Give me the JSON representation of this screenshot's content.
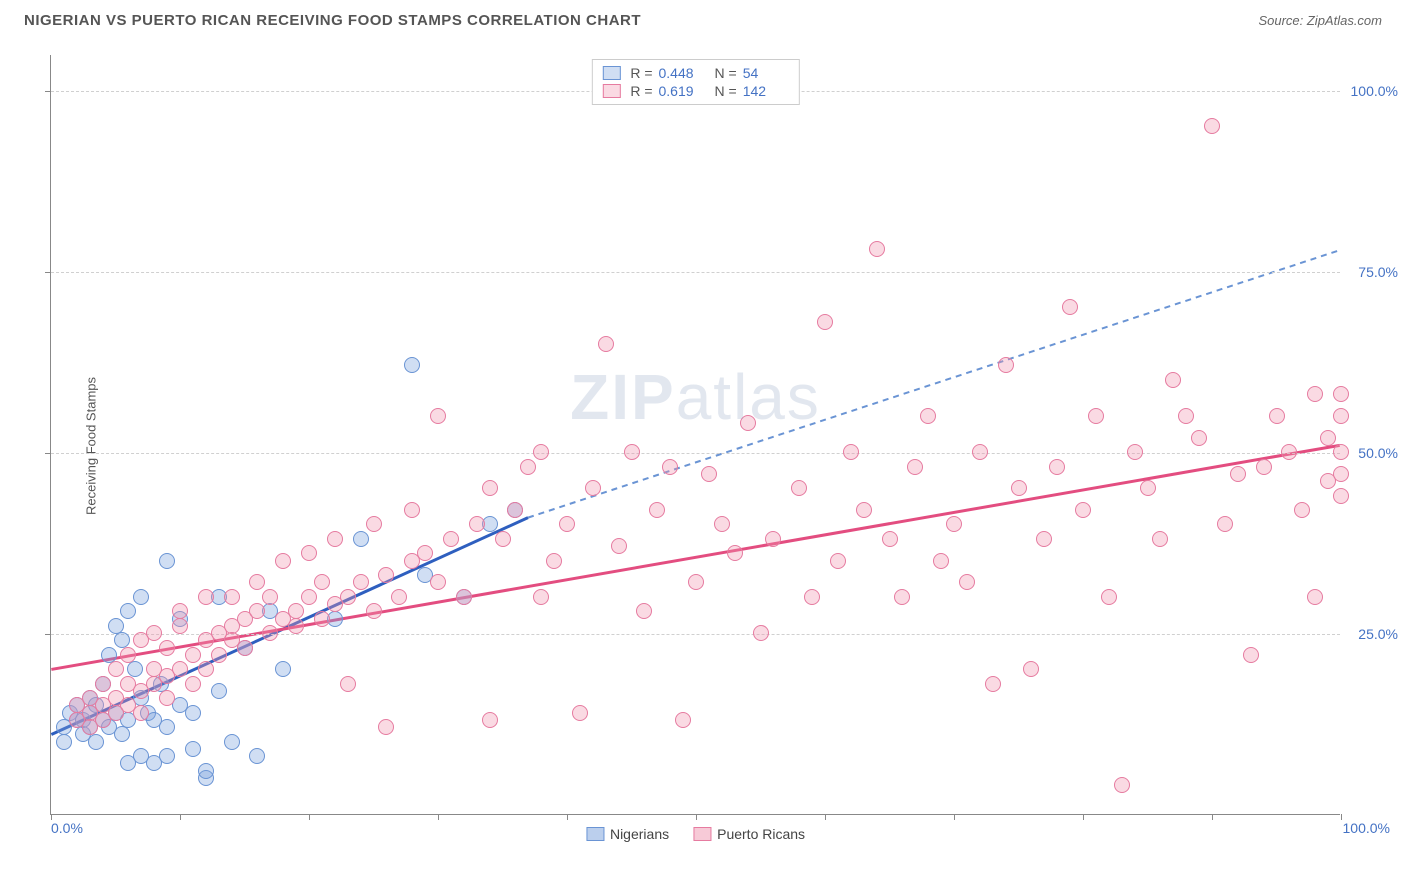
{
  "header": {
    "title": "NIGERIAN VS PUERTO RICAN RECEIVING FOOD STAMPS CORRELATION CHART",
    "source_prefix": "Source: ",
    "source": "ZipAtlas.com"
  },
  "watermark": {
    "part1": "ZIP",
    "part2": "atlas"
  },
  "chart": {
    "type": "scatter",
    "ylabel": "Receiving Food Stamps",
    "xlim": [
      0,
      100
    ],
    "ylim": [
      0,
      105
    ],
    "ytick_labels": [
      "25.0%",
      "50.0%",
      "75.0%",
      "100.0%"
    ],
    "ytick_values": [
      25,
      50,
      75,
      100
    ],
    "xtick_labels_visible": {
      "left": "0.0%",
      "right": "100.0%"
    },
    "xtick_positions": [
      0,
      10,
      20,
      30,
      40,
      50,
      60,
      70,
      80,
      90,
      100
    ],
    "grid_color": "#d0d0d0",
    "axis_color": "#888888",
    "background_color": "#ffffff",
    "point_radius": 8,
    "point_border_width": 1.5,
    "series": [
      {
        "name": "Nigerians",
        "fill": "rgba(120,160,220,0.35)",
        "stroke": "#6a94d4",
        "trend_color": "#2e5fbf",
        "trend_dash_color": "#6a94d4",
        "trend_width": 3,
        "R": "0.448",
        "N": "54",
        "trend_solid": {
          "x1": 0,
          "y1": 11,
          "x2": 37,
          "y2": 41
        },
        "trend_dashed": {
          "x1": 37,
          "y1": 41,
          "x2": 100,
          "y2": 78
        },
        "points": [
          [
            1,
            12
          ],
          [
            1.5,
            14
          ],
          [
            1,
            10
          ],
          [
            2,
            13
          ],
          [
            2,
            15
          ],
          [
            2.5,
            11
          ],
          [
            2.5,
            13
          ],
          [
            3,
            12
          ],
          [
            3,
            14
          ],
          [
            3,
            16
          ],
          [
            3.5,
            10
          ],
          [
            3.5,
            15
          ],
          [
            4,
            13
          ],
          [
            4,
            18
          ],
          [
            4.5,
            12
          ],
          [
            4.5,
            22
          ],
          [
            5,
            14
          ],
          [
            5,
            26
          ],
          [
            5.5,
            11
          ],
          [
            5.5,
            24
          ],
          [
            6,
            13
          ],
          [
            6,
            28
          ],
          [
            6,
            7
          ],
          [
            6.5,
            20
          ],
          [
            7,
            8
          ],
          [
            7,
            16
          ],
          [
            7,
            30
          ],
          [
            7.5,
            14
          ],
          [
            8,
            7
          ],
          [
            8,
            13
          ],
          [
            8.5,
            18
          ],
          [
            9,
            12
          ],
          [
            9,
            8
          ],
          [
            9,
            35
          ],
          [
            10,
            15
          ],
          [
            10,
            27
          ],
          [
            11,
            9
          ],
          [
            11,
            14
          ],
          [
            12,
            5
          ],
          [
            12,
            6
          ],
          [
            13,
            17
          ],
          [
            13,
            30
          ],
          [
            14,
            10
          ],
          [
            15,
            23
          ],
          [
            16,
            8
          ],
          [
            17,
            28
          ],
          [
            18,
            20
          ],
          [
            22,
            27
          ],
          [
            24,
            38
          ],
          [
            28,
            62
          ],
          [
            29,
            33
          ],
          [
            32,
            30
          ],
          [
            34,
            40
          ],
          [
            36,
            42
          ]
        ]
      },
      {
        "name": "Puerto Ricans",
        "fill": "rgba(240,150,175,0.35)",
        "stroke": "#e67ba0",
        "trend_color": "#e34d80",
        "trend_width": 3,
        "R": "0.619",
        "N": "142",
        "trend_solid": {
          "x1": 0,
          "y1": 20,
          "x2": 100,
          "y2": 51
        },
        "points": [
          [
            2,
            13
          ],
          [
            2,
            15
          ],
          [
            3,
            14
          ],
          [
            3,
            16
          ],
          [
            3,
            12
          ],
          [
            4,
            15
          ],
          [
            4,
            18
          ],
          [
            4,
            13
          ],
          [
            5,
            14
          ],
          [
            5,
            20
          ],
          [
            5,
            16
          ],
          [
            6,
            15
          ],
          [
            6,
            22
          ],
          [
            6,
            18
          ],
          [
            7,
            17
          ],
          [
            7,
            24
          ],
          [
            7,
            14
          ],
          [
            8,
            18
          ],
          [
            8,
            20
          ],
          [
            8,
            25
          ],
          [
            9,
            19
          ],
          [
            9,
            23
          ],
          [
            9,
            16
          ],
          [
            10,
            20
          ],
          [
            10,
            26
          ],
          [
            10,
            28
          ],
          [
            11,
            22
          ],
          [
            11,
            18
          ],
          [
            12,
            24
          ],
          [
            12,
            30
          ],
          [
            12,
            20
          ],
          [
            13,
            25
          ],
          [
            13,
            22
          ],
          [
            14,
            26
          ],
          [
            14,
            30
          ],
          [
            14,
            24
          ],
          [
            15,
            27
          ],
          [
            15,
            23
          ],
          [
            16,
            28
          ],
          [
            16,
            32
          ],
          [
            17,
            25
          ],
          [
            17,
            30
          ],
          [
            18,
            27
          ],
          [
            18,
            35
          ],
          [
            19,
            28
          ],
          [
            19,
            26
          ],
          [
            20,
            30
          ],
          [
            20,
            36
          ],
          [
            21,
            27
          ],
          [
            21,
            32
          ],
          [
            22,
            29
          ],
          [
            22,
            38
          ],
          [
            23,
            30
          ],
          [
            23,
            18
          ],
          [
            24,
            32
          ],
          [
            25,
            28
          ],
          [
            25,
            40
          ],
          [
            26,
            33
          ],
          [
            26,
            12
          ],
          [
            27,
            30
          ],
          [
            28,
            35
          ],
          [
            28,
            42
          ],
          [
            29,
            36
          ],
          [
            30,
            32
          ],
          [
            30,
            55
          ],
          [
            31,
            38
          ],
          [
            32,
            30
          ],
          [
            33,
            40
          ],
          [
            34,
            45
          ],
          [
            34,
            13
          ],
          [
            35,
            38
          ],
          [
            36,
            42
          ],
          [
            37,
            48
          ],
          [
            38,
            30
          ],
          [
            38,
            50
          ],
          [
            39,
            35
          ],
          [
            40,
            40
          ],
          [
            41,
            14
          ],
          [
            42,
            45
          ],
          [
            43,
            65
          ],
          [
            44,
            37
          ],
          [
            45,
            50
          ],
          [
            46,
            28
          ],
          [
            47,
            42
          ],
          [
            48,
            48
          ],
          [
            49,
            13
          ],
          [
            50,
            32
          ],
          [
            51,
            47
          ],
          [
            52,
            40
          ],
          [
            53,
            36
          ],
          [
            54,
            54
          ],
          [
            55,
            25
          ],
          [
            56,
            38
          ],
          [
            58,
            45
          ],
          [
            59,
            30
          ],
          [
            60,
            68
          ],
          [
            61,
            35
          ],
          [
            62,
            50
          ],
          [
            63,
            42
          ],
          [
            64,
            78
          ],
          [
            65,
            38
          ],
          [
            66,
            30
          ],
          [
            67,
            48
          ],
          [
            68,
            55
          ],
          [
            69,
            35
          ],
          [
            70,
            40
          ],
          [
            71,
            32
          ],
          [
            72,
            50
          ],
          [
            73,
            18
          ],
          [
            74,
            62
          ],
          [
            75,
            45
          ],
          [
            76,
            20
          ],
          [
            77,
            38
          ],
          [
            78,
            48
          ],
          [
            79,
            70
          ],
          [
            80,
            42
          ],
          [
            81,
            55
          ],
          [
            82,
            30
          ],
          [
            83,
            4
          ],
          [
            84,
            50
          ],
          [
            85,
            45
          ],
          [
            86,
            38
          ],
          [
            87,
            60
          ],
          [
            88,
            55
          ],
          [
            89,
            52
          ],
          [
            90,
            95
          ],
          [
            91,
            40
          ],
          [
            92,
            47
          ],
          [
            93,
            22
          ],
          [
            94,
            48
          ],
          [
            95,
            55
          ],
          [
            96,
            50
          ],
          [
            97,
            42
          ],
          [
            98,
            58
          ],
          [
            98,
            30
          ],
          [
            99,
            46
          ],
          [
            99,
            52
          ],
          [
            100,
            50
          ],
          [
            100,
            47
          ],
          [
            100,
            55
          ],
          [
            100,
            58
          ],
          [
            100,
            44
          ]
        ]
      }
    ]
  },
  "legend_bottom": {
    "items": [
      {
        "label": "Nigerians",
        "fill": "rgba(120,160,220,0.5)",
        "stroke": "#6a94d4"
      },
      {
        "label": "Puerto Ricans",
        "fill": "rgba(240,150,175,0.5)",
        "stroke": "#e67ba0"
      }
    ]
  }
}
